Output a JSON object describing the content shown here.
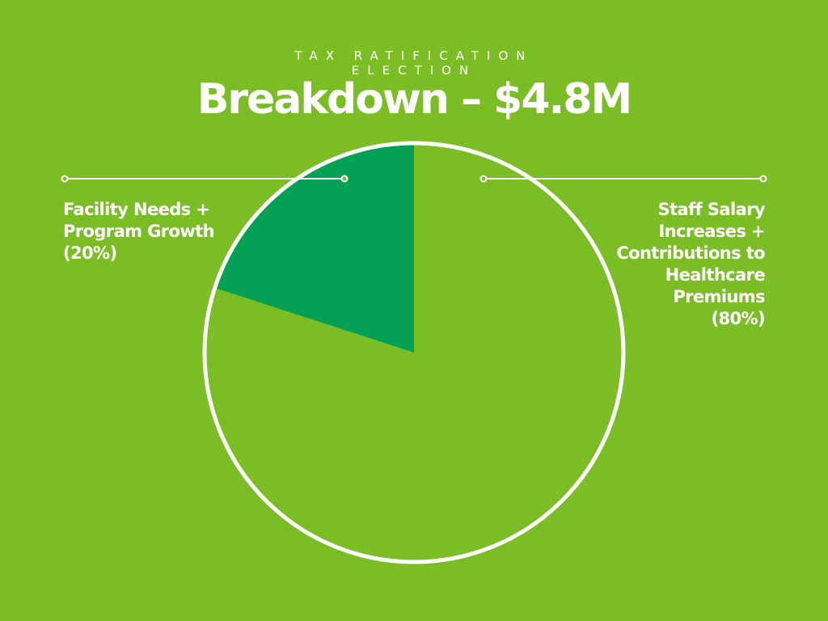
{
  "colors": {
    "background": "#7bbd24",
    "slice_major": "#7bbd24",
    "slice_minor": "#03a056",
    "outline": "#ffffff"
  },
  "header": {
    "kicker": "TAX RATIFICATION ELECTION",
    "title": "Breakdown – $4.8M"
  },
  "chart_data": {
    "type": "pie",
    "title": "Breakdown – $4.8M",
    "slices": [
      {
        "label": "Staff Salary Increases + Contributions to Healthcare Premiums",
        "percent": 80
      },
      {
        "label": "Facility Needs + Program Growth",
        "percent": 20
      }
    ]
  },
  "labels": {
    "left": [
      "Facility Needs +",
      "Program Growth",
      "(20%)"
    ],
    "right": [
      "Staff Salary",
      "Increases +",
      "Contributions to",
      "Healthcare",
      "Premiums",
      "(80%)"
    ]
  }
}
